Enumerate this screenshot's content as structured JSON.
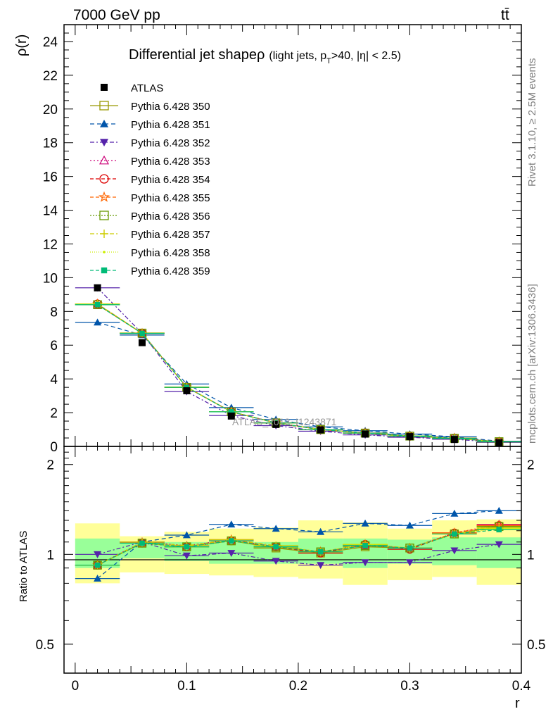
{
  "header": {
    "left": "7000 GeV pp",
    "right": "tt̄"
  },
  "side": {
    "rivet": "Rivet 3.1.10, ≥ 2.5M events",
    "mcplots": "mcplots.cern.ch [arXiv:1306.3436]"
  },
  "chart_data": [
    {
      "type": "line",
      "title": "Differential jet shape",
      "subtitle_rho": "ρ",
      "subtitle_a": "(light jets, p",
      "subtitle_sub": "T",
      "subtitle_b": ">40, |η| < 2.5)",
      "ylabel": "ρ(r)",
      "xlabel": "r",
      "watermark": "ATLAS_2013_I1243871",
      "xlim": [
        -0.01,
        0.4
      ],
      "ylim": [
        0,
        25
      ],
      "x_ticks": [
        "0",
        "0.1",
        "0.2",
        "0.3",
        "0.4"
      ],
      "y_ticks": [
        "0",
        "2",
        "4",
        "6",
        "8",
        "10",
        "12",
        "14",
        "16",
        "18",
        "20",
        "22",
        "24"
      ],
      "x": [
        0.02,
        0.06,
        0.1,
        0.14,
        0.18,
        0.22,
        0.26,
        0.3,
        0.34,
        0.38
      ],
      "data": {
        "name": "ATLAS",
        "color": "#000000",
        "values": [
          9.4,
          6.15,
          3.3,
          1.8,
          1.3,
          0.98,
          0.73,
          0.58,
          0.41,
          0.22
        ]
      },
      "series": [
        {
          "name": "Pythia 6.428 350",
          "color": "#999900",
          "marker": "square-open",
          "dash": "solid",
          "values": [
            8.4,
            6.7,
            3.5,
            2.05,
            1.4,
            1.0,
            0.79,
            0.61,
            0.48,
            0.28
          ]
        },
        {
          "name": "Pythia 6.428 351",
          "color": "#0055aa",
          "marker": "triangle-up",
          "dash": "6,4",
          "values": [
            7.35,
            6.6,
            3.7,
            2.3,
            1.6,
            1.16,
            0.93,
            0.73,
            0.57,
            0.31
          ]
        },
        {
          "name": "Pythia 6.428 352",
          "color": "#5522aa",
          "marker": "triangle-down",
          "dash": "6,3,2,3",
          "values": [
            9.4,
            6.7,
            3.25,
            1.83,
            1.23,
            0.9,
            0.68,
            0.54,
            0.42,
            0.24
          ]
        },
        {
          "name": "Pythia 6.428 353",
          "color": "#cc0077",
          "marker": "triangle-open",
          "dash": "2,3",
          "values": [
            8.4,
            6.72,
            3.52,
            2.05,
            1.4,
            1.0,
            0.79,
            0.61,
            0.49,
            0.28
          ]
        },
        {
          "name": "Pythia 6.428 354",
          "color": "#dd0000",
          "marker": "circle-open",
          "dash": "5,3",
          "values": [
            8.45,
            6.7,
            3.5,
            2.05,
            1.38,
            0.99,
            0.79,
            0.6,
            0.49,
            0.28
          ]
        },
        {
          "name": "Pythia 6.428 355",
          "color": "#ff6600",
          "marker": "star-open",
          "dash": "5,3",
          "values": [
            8.45,
            6.7,
            3.5,
            2.06,
            1.39,
            1.0,
            0.8,
            0.61,
            0.49,
            0.28
          ]
        },
        {
          "name": "Pythia 6.428 356",
          "color": "#669900",
          "marker": "square-open",
          "dash": "2,2",
          "values": [
            8.4,
            6.72,
            3.5,
            2.05,
            1.39,
            1.0,
            0.79,
            0.61,
            0.48,
            0.28
          ]
        },
        {
          "name": "Pythia 6.428 357",
          "color": "#cccc00",
          "marker": "cross",
          "dash": "6,3,2,3",
          "values": [
            8.45,
            6.72,
            3.52,
            2.06,
            1.4,
            1.0,
            0.79,
            0.61,
            0.48,
            0.27
          ]
        },
        {
          "name": "Pythia 6.428 358",
          "color": "#ccee00",
          "marker": "dot",
          "dash": "1,2",
          "values": [
            8.42,
            6.71,
            3.5,
            2.05,
            1.39,
            1.0,
            0.79,
            0.61,
            0.48,
            0.27
          ]
        },
        {
          "name": "Pythia 6.428 359",
          "color": "#00bb77",
          "marker": "square-filled",
          "dash": "5,3",
          "values": [
            8.4,
            6.7,
            3.5,
            2.05,
            1.39,
            1.0,
            0.79,
            0.61,
            0.48,
            0.27
          ]
        }
      ]
    },
    {
      "type": "line",
      "ylabel": "Ratio to ATLAS",
      "xlabel": "r",
      "log_y": true,
      "xlim": [
        -0.01,
        0.4
      ],
      "ylim": [
        0.4,
        2.3
      ],
      "y_ticks": [
        "0.5",
        "1",
        "2"
      ],
      "x_ticks": [
        "0",
        "0.1",
        "0.2",
        "0.3",
        "0.4"
      ],
      "x": [
        0.02,
        0.06,
        0.1,
        0.14,
        0.18,
        0.22,
        0.26,
        0.3,
        0.34,
        0.38
      ],
      "band_inner": {
        "color": "#99ff99",
        "lo": [
          0.9,
          0.97,
          0.95,
          0.93,
          0.93,
          0.93,
          0.9,
          0.93,
          0.92,
          0.9
        ],
        "hi": [
          1.13,
          1.1,
          1.1,
          1.1,
          1.1,
          1.13,
          1.13,
          1.12,
          1.14,
          1.14
        ]
      },
      "band_outer": {
        "color": "#ffff99",
        "lo": [
          0.8,
          0.87,
          0.86,
          0.85,
          0.84,
          0.83,
          0.79,
          0.82,
          0.84,
          0.79
        ],
        "hi": [
          1.27,
          1.15,
          1.19,
          1.22,
          1.23,
          1.3,
          1.28,
          1.22,
          1.3,
          1.31
        ]
      },
      "series": [
        {
          "name": "Pythia 6.428 350",
          "values": [
            0.92,
            1.09,
            1.06,
            1.11,
            1.05,
            1.01,
            1.06,
            1.05,
            1.17,
            1.24
          ]
        },
        {
          "name": "Pythia 6.428 351",
          "values": [
            0.83,
            1.1,
            1.16,
            1.26,
            1.22,
            1.19,
            1.27,
            1.25,
            1.37,
            1.4
          ]
        },
        {
          "name": "Pythia 6.428 352",
          "values": [
            1.0,
            1.1,
            0.99,
            1.01,
            0.95,
            0.92,
            0.94,
            0.94,
            1.03,
            1.08
          ]
        },
        {
          "name": "Pythia 6.428 353",
          "values": [
            0.92,
            1.1,
            1.07,
            1.12,
            1.06,
            1.02,
            1.07,
            1.05,
            1.18,
            1.26
          ]
        },
        {
          "name": "Pythia 6.428 354",
          "values": [
            0.92,
            1.09,
            1.06,
            1.11,
            1.06,
            1.01,
            1.08,
            1.04,
            1.18,
            1.25
          ]
        },
        {
          "name": "Pythia 6.428 355",
          "values": [
            0.92,
            1.09,
            1.06,
            1.12,
            1.06,
            1.02,
            1.08,
            1.05,
            1.18,
            1.25
          ]
        },
        {
          "name": "Pythia 6.428 356",
          "values": [
            0.92,
            1.09,
            1.06,
            1.11,
            1.06,
            1.02,
            1.07,
            1.05,
            1.17,
            1.24
          ]
        },
        {
          "name": "Pythia 6.428 357",
          "values": [
            0.92,
            1.1,
            1.07,
            1.12,
            1.07,
            1.02,
            1.08,
            1.05,
            1.17,
            1.23
          ]
        },
        {
          "name": "Pythia 6.428 358",
          "values": [
            0.92,
            1.09,
            1.06,
            1.11,
            1.06,
            1.02,
            1.08,
            1.05,
            1.17,
            1.22
          ]
        },
        {
          "name": "Pythia 6.428 359",
          "values": [
            0.92,
            1.09,
            1.06,
            1.11,
            1.06,
            1.02,
            1.07,
            1.05,
            1.17,
            1.21
          ]
        }
      ]
    }
  ]
}
